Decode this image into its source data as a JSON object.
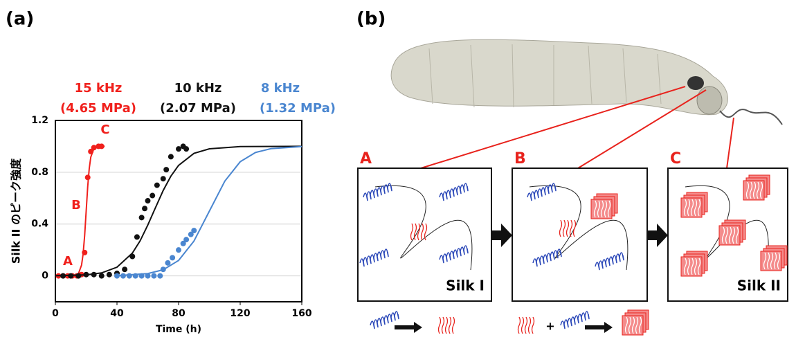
{
  "panel_labels": [
    "(a)",
    "(b)"
  ],
  "chart_data": {
    "type": "scatter",
    "x_label": "Time (h)",
    "y_label": "Silk II のピーク強度",
    "xlim": [
      0,
      160
    ],
    "xticks": [
      0,
      40,
      80,
      120,
      160
    ],
    "ylim": [
      -0.2,
      1.2
    ],
    "yticks": [
      0,
      0.4,
      0.8,
      1.2
    ],
    "grid": true,
    "point_labels": [
      "A",
      "B",
      "C"
    ],
    "series": [
      {
        "name": "15 kHz",
        "pressure": "(4.65 MPa)",
        "color": "#f0201c",
        "x": [
          2,
          5,
          8,
          11,
          14,
          17,
          19,
          21,
          23,
          25,
          28,
          30
        ],
        "values": [
          0,
          0,
          0,
          0,
          0,
          0.01,
          0.18,
          0.76,
          0.96,
          0.99,
          1.0,
          1.0
        ],
        "fit_x": [
          15,
          17,
          18,
          19,
          20,
          21,
          22,
          23,
          25,
          28,
          32
        ],
        "fit_values": [
          0.018,
          0.083,
          0.168,
          0.31,
          0.5,
          0.69,
          0.83,
          0.917,
          0.982,
          0.998,
          1.0
        ]
      },
      {
        "name": "10 kHz",
        "pressure": "(2.07 MPa)",
        "color": "#111111",
        "x": [
          5,
          10,
          15,
          20,
          25,
          30,
          35,
          40,
          45,
          50,
          53,
          56,
          58,
          60,
          63,
          66,
          70,
          72,
          75,
          80,
          83,
          85
        ],
        "values": [
          0,
          0,
          0,
          0.01,
          0.01,
          0,
          0.01,
          0.02,
          0.05,
          0.15,
          0.3,
          0.45,
          0.52,
          0.58,
          0.62,
          0.7,
          0.75,
          0.82,
          0.92,
          0.98,
          1.0,
          0.98
        ],
        "fit_x": [
          0,
          20,
          30,
          40,
          50,
          55,
          60,
          64,
          70,
          75,
          80,
          90,
          100,
          120,
          160
        ],
        "fit_values": [
          0.001,
          0.008,
          0.023,
          0.067,
          0.176,
          0.27,
          0.392,
          0.5,
          0.659,
          0.77,
          0.853,
          0.946,
          0.981,
          0.998,
          1.0
        ]
      },
      {
        "name": "8 kHz",
        "pressure": "(1.32 MPa)",
        "color": "#4a86d0",
        "x": [
          40,
          44,
          48,
          52,
          56,
          60,
          64,
          68,
          70,
          73,
          76,
          80,
          83,
          85,
          88,
          90
        ],
        "values": [
          0,
          0,
          0,
          0,
          0,
          0,
          0,
          0,
          0.05,
          0.1,
          0.14,
          0.2,
          0.25,
          0.28,
          0.32,
          0.35
        ],
        "fit_x": [
          40,
          60,
          70,
          80,
          90,
          100,
          110,
          120,
          130,
          140,
          160
        ],
        "fit_values": [
          0.002,
          0.018,
          0.047,
          0.119,
          0.269,
          0.5,
          0.731,
          0.881,
          0.953,
          0.982,
          0.998
        ]
      }
    ]
  },
  "diagram": {
    "boxes": [
      {
        "label": "A",
        "caption": "Silk I"
      },
      {
        "label": "B"
      },
      {
        "label": "C",
        "caption": "Silk II"
      }
    ],
    "plus": "+"
  }
}
